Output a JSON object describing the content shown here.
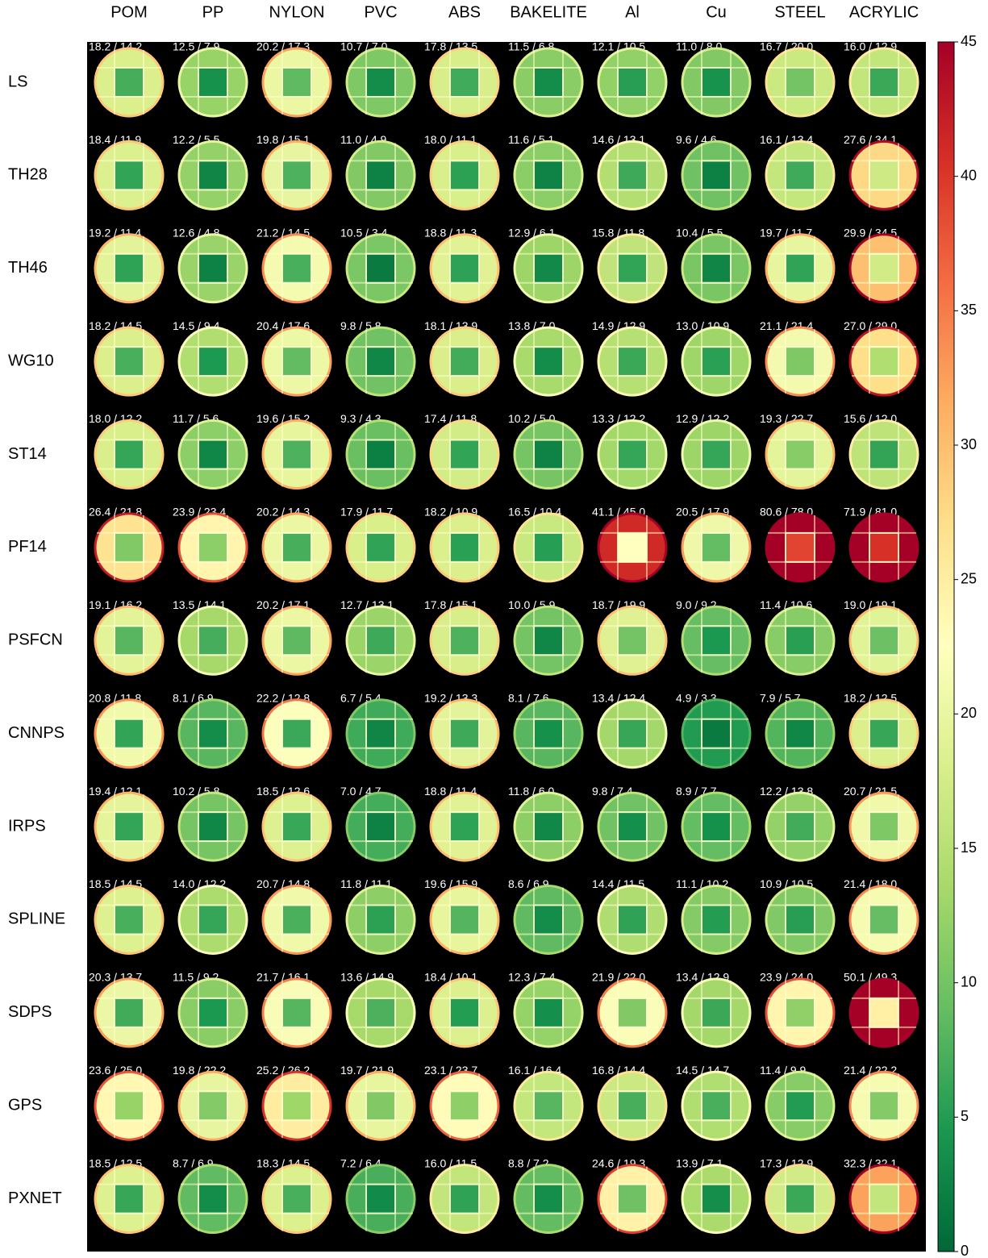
{
  "chart_data": {
    "type": "image-grid",
    "columns": [
      "POM",
      "PP",
      "NYLON",
      "PVC",
      "ABS",
      "BAKELITE",
      "Al",
      "Cu",
      "STEEL",
      "ACRYLIC"
    ],
    "rows": [
      "LS",
      "TH28",
      "TH46",
      "WG10",
      "ST14",
      "PF14",
      "PSFCN",
      "CNNPS",
      "IRPS",
      "SPLINE",
      "SDPS",
      "GPS",
      "PXNET"
    ],
    "cell_labels": [
      [
        "18.2 / 14.2",
        "12.5 / 7.9",
        "20.2 / 17.3",
        "10.7 / 7.0",
        "17.8 / 13.5",
        "11.5 / 6.8",
        "12.1 / 10.5",
        "11.0 / 8.0",
        "16.7 / 20.0",
        "16.0 / 12.9"
      ],
      [
        "18.4 / 11.9",
        "12.2 / 5.5",
        "19.8 / 15.1",
        "11.0 / 4.9",
        "18.0 / 11.1",
        "11.6 / 5.1",
        "14.6 / 13.1",
        "9.6 / 4.6",
        "16.1 / 13.4",
        "27.6 / 34.1"
      ],
      [
        "19.2 / 11.4",
        "12.6 / 4.8",
        "21.2 / 14.5",
        "10.5 / 3.4",
        "18.8 / 11.3",
        "12.9 / 6.1",
        "15.8 / 11.8",
        "10.4 / 5.5",
        "19.7 / 11.7",
        "29.9 / 34.5"
      ],
      [
        "18.2 / 14.5",
        "14.5 / 9.4",
        "20.4 / 17.6",
        "9.8 / 5.8",
        "18.1 / 13.9",
        "13.8 / 7.0",
        "14.9 / 12.9",
        "13.0 / 10.9",
        "21.1 / 21.4",
        "27.0 / 29.0"
      ],
      [
        "18.0 / 12.2",
        "11.7 / 5.6",
        "19.6 / 15.2",
        "9.3 / 4.3",
        "17.4 / 11.8",
        "10.2 / 5.0",
        "13.3 / 12.2",
        "12.9 / 12.2",
        "19.3 / 22.7",
        "15.6 / 12.0"
      ],
      [
        "26.4 / 21.8",
        "23.9 / 23.4",
        "20.2 / 14.3",
        "17.9 / 11.7",
        "18.2 / 10.9",
        "16.5 / 10.4",
        "41.1 / 45.0",
        "20.5 / 17.9",
        "80.6 / 78.0",
        "71.9 / 81.0"
      ],
      [
        "19.1 / 16.2",
        "13.5 / 14.1",
        "20.2 / 17.1",
        "12.7 / 13.1",
        "17.8 / 15.1",
        "10.0 / 5.9",
        "18.7 / 19.9",
        "9.0 / 9.2",
        "11.4 / 10.6",
        "19.0 / 19.1"
      ],
      [
        "20.8 / 11.8",
        "8.1 / 6.9",
        "22.2 / 12.8",
        "6.7 / 5.4",
        "19.2 / 13.3",
        "8.1 / 7.6",
        "13.4 / 12.4",
        "4.9 / 3.3",
        "7.9 / 5.7",
        "18.2 / 12.5"
      ],
      [
        "19.4 / 12.1",
        "10.2 / 5.8",
        "18.5 / 12.6",
        "7.0 / 4.7",
        "18.8 / 11.4",
        "11.8 / 6.0",
        "9.8 / 7.4",
        "8.9 / 7.7",
        "12.2 / 13.8",
        "20.7 / 21.5"
      ],
      [
        "18.5 / 14.5",
        "14.0 / 12.2",
        "20.7 / 14.8",
        "11.8 / 11.1",
        "19.6 / 15.9",
        "8.6 / 6.9",
        "14.4 / 11.5",
        "11.1 / 10.2",
        "10.9 / 10.5",
        "21.4 / 18.0"
      ],
      [
        "20.3 / 13.7",
        "11.5 / 9.2",
        "21.7 / 16.1",
        "13.6 / 14.9",
        "18.4 / 10.1",
        "12.3 / 7.4",
        "21.9 / 22.0",
        "13.4 / 12.9",
        "23.9 / 24.0",
        "50.1 / 49.3"
      ],
      [
        "23.6 / 25.0",
        "19.8 / 22.2",
        "25.2 / 26.2",
        "19.7 / 21.9",
        "23.1 / 23.7",
        "16.1 / 16.4",
        "16.8 / 14.4",
        "14.5 / 14.7",
        "11.4 / 9.9",
        "21.4 / 22.2"
      ],
      [
        "18.5 / 12.5",
        "8.7 / 6.9",
        "18.3 / 14.5",
        "7.2 / 6.4",
        "16.0 / 11.5",
        "8.8 / 7.2",
        "24.6 / 19.3",
        "13.9 / 7.1",
        "17.3 / 12.9",
        "32.3 / 32.1"
      ]
    ],
    "clim": [
      0,
      45
    ],
    "cticks": [
      0,
      5,
      10,
      15,
      20,
      25,
      30,
      35,
      40,
      45
    ],
    "colormap": [
      "#006837",
      "#1a9850",
      "#66bd63",
      "#a6d96a",
      "#d9ef8b",
      "#ffffbf",
      "#fee08b",
      "#fdae61",
      "#f46d43",
      "#d73027",
      "#a50026"
    ]
  }
}
